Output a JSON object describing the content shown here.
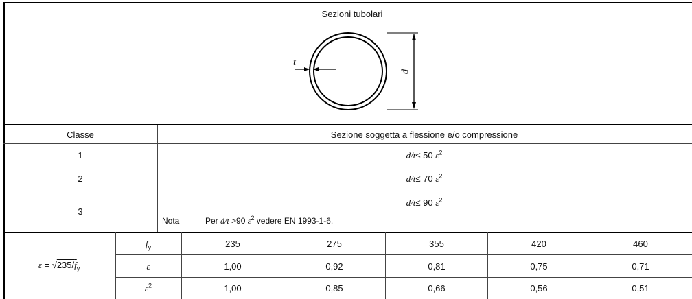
{
  "figure": {
    "title": "Sezioni tubolari",
    "label_t": "t",
    "label_d": "d"
  },
  "header": {
    "classe": "Classe",
    "section": "Sezione soggetta a flessione e/o compressione"
  },
  "classes": [
    {
      "num": "1",
      "cond_ratio": "d/t",
      "cond_op": "≤ 50",
      "cond_eps": "ε",
      "cond_exp": "2"
    },
    {
      "num": "2",
      "cond_ratio": "d/t",
      "cond_op": "≤ 70",
      "cond_eps": "ε",
      "cond_exp": "2"
    },
    {
      "num": "3",
      "cond_ratio": "d/t",
      "cond_op": "≤ 90",
      "cond_eps": "ε",
      "cond_exp": "2"
    }
  ],
  "note": {
    "label": "Nota",
    "text_pre": "Per ",
    "ratio": "d/t",
    "op": " >90 ",
    "eps": "ε",
    "exp": "2",
    "text_post": " vedere EN 1993-1-6."
  },
  "epsilon": {
    "formula_lhs": "ε",
    "formula_eq": " = ",
    "formula_root": "√",
    "formula_num": "235/",
    "formula_f": "f",
    "formula_sub": "y",
    "rows": [
      {
        "sym": "f",
        "sub": "y",
        "sup": "",
        "values": [
          "235",
          "275",
          "355",
          "420",
          "460"
        ]
      },
      {
        "sym": "ε",
        "sub": "",
        "sup": "",
        "values": [
          "1,00",
          "0,92",
          "0,81",
          "0,75",
          "0,71"
        ]
      },
      {
        "sym": "ε",
        "sub": "",
        "sup": "2",
        "values": [
          "1,00",
          "0,85",
          "0,66",
          "0,56",
          "0,51"
        ]
      }
    ]
  }
}
